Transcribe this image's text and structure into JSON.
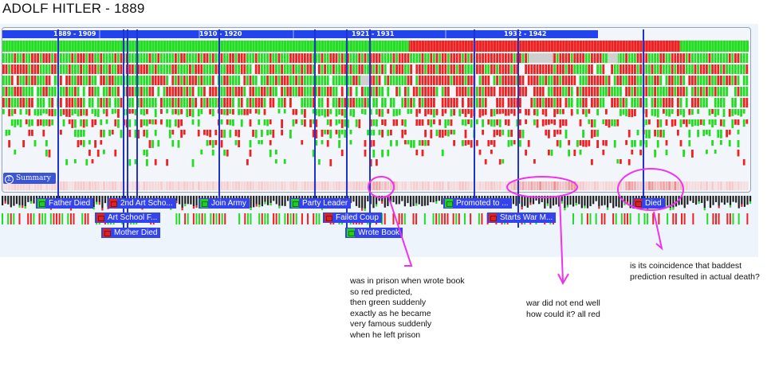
{
  "title": "ADOLF HITLER - 1889",
  "eras": [
    "1889 - 1909",
    "1910 - 1920",
    "1921 - 1931",
    "1932 - 1942"
  ],
  "summary_label": "Summary",
  "events": [
    {
      "label": "Father Died",
      "color": "#22cc22"
    },
    {
      "label": "Art School F...",
      "color": "#dd2222"
    },
    {
      "label": "Mother Died",
      "color": "#dd2222"
    },
    {
      "label": "2nd Art Scho...",
      "color": "#dd2222"
    },
    {
      "label": "Join Army",
      "color": "#22cc22"
    },
    {
      "label": "Party Leader",
      "color": "#22cc22"
    },
    {
      "label": "Failed Coup",
      "color": "#dd2222"
    },
    {
      "label": "Wrote Book",
      "color": "#22cc22"
    },
    {
      "label": "Promoted to ...",
      "color": "#22cc22"
    },
    {
      "label": "Starts War M...",
      "color": "#dd2222"
    },
    {
      "label": "Died",
      "color": "#dd2222"
    }
  ],
  "annotations": [
    {
      "text": "was in prison when wrote book\nso red predicted,\nthen green suddenly\nexactly as he became\nvery famous suddenly\nwhen he left prison"
    },
    {
      "text": "war did not end well\nhow could it? all red"
    },
    {
      "text": "is its coincidence that baddest\nprediction resulted in actual death?"
    }
  ],
  "colors": {
    "good": "#22dd22",
    "bad": "#ee2222",
    "era_bar": "#2244ee",
    "event_line": "#2233cc",
    "highlight": "#ee33ee"
  }
}
